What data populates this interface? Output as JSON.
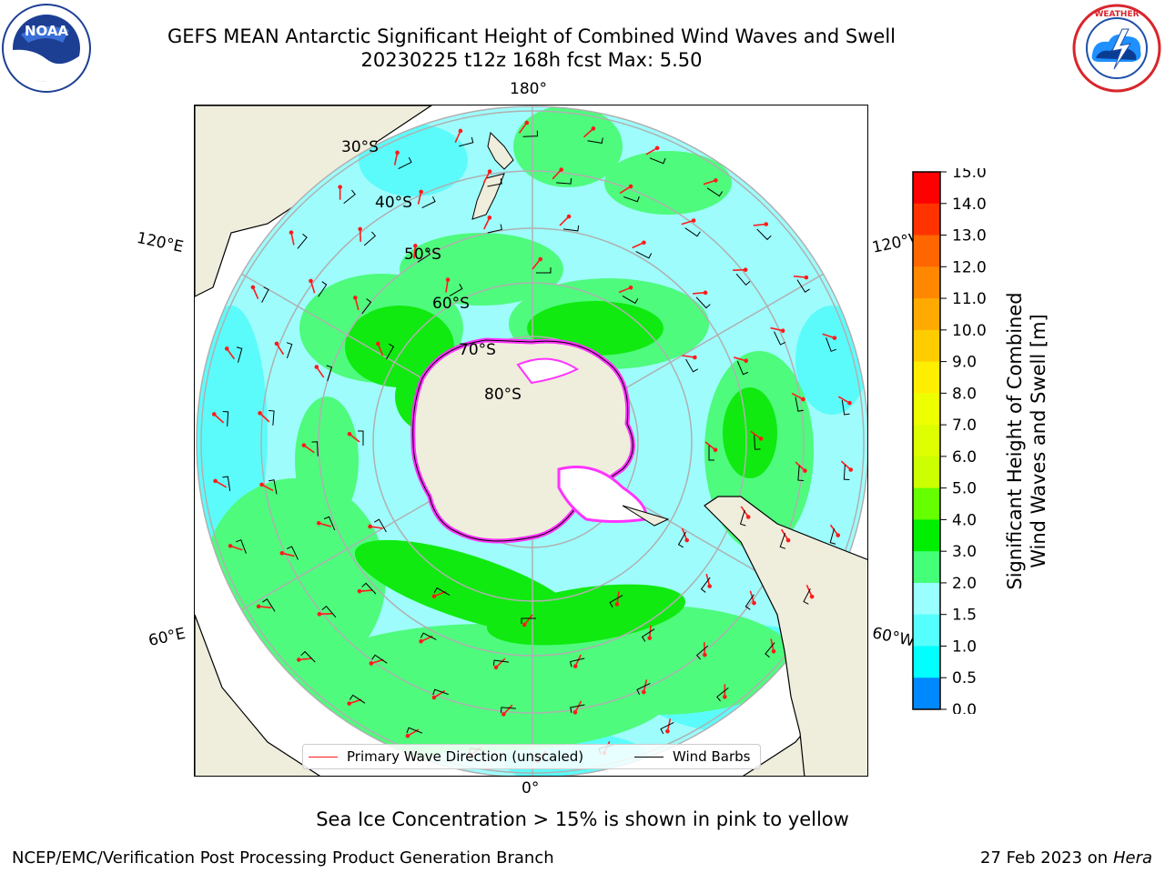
{
  "header": {
    "title_line1": "GEFS MEAN Antarctic Significant Height of Combined Wind Waves and Swell",
    "title_line2": "20230225 t12z 168h fcst   Max: 5.50"
  },
  "logos": {
    "left": {
      "name": "noaa-logo",
      "text": "NOAA"
    },
    "right": {
      "name": "nws-logo",
      "text": "NATIONAL WEATHER SERVICE"
    }
  },
  "map": {
    "longitude_labels": {
      "top": "180°",
      "bottom": "0°",
      "upper_left": "120°E",
      "lower_left": "60°E",
      "upper_right": "120°W",
      "lower_right": "60°W"
    },
    "latitude_labels": [
      "30°S",
      "40°S",
      "50°S",
      "60°S",
      "70°S",
      "80°S"
    ],
    "colors": {
      "land": "#efeddc",
      "wave_1_5_to_2": "#5cfbfb",
      "wave_2_to_3": "#9efcfc",
      "wave_3_to_4": "#4efb7d",
      "wave_4_to_5": "#10ea10",
      "sea_ice": "#ff33ff",
      "grid": "#b0b0b0",
      "arrow": "#ff1a1a",
      "barb": "#000000"
    }
  },
  "colorbar": {
    "label_line1": "Significant Height of Combined",
    "label_line2": "Wind Waves and Swell [m]",
    "ticks": [
      "15.0",
      "14.0",
      "13.0",
      "12.0",
      "11.0",
      "10.0",
      "9.0",
      "8.0",
      "7.0",
      "6.0",
      "5.0",
      "4.0",
      "3.0",
      "2.0",
      "1.5",
      "1.0",
      "0.5",
      "0.0"
    ],
    "bin_colors_top_to_bottom": [
      "#ff0000",
      "#ff3300",
      "#ff6600",
      "#ff8800",
      "#ffaa00",
      "#ffcc00",
      "#ffee00",
      "#eeff00",
      "#ddff00",
      "#ccff00",
      "#66ff00",
      "#00ee00",
      "#44ff77",
      "#99ffff",
      "#55ffff",
      "#00ffff",
      "#0088ff",
      "#0000ff"
    ]
  },
  "legend": {
    "wave_direction_label": "Primary Wave Direction (unscaled)",
    "wind_barbs_label": "Wind Barbs"
  },
  "note": "Sea Ice Concentration > 15% is shown in pink to yellow",
  "footer": {
    "left": "NCEP/EMC/Verification Post Processing Product Generation Branch",
    "date": "27 Feb 2023 on",
    "machine": "Hera"
  }
}
